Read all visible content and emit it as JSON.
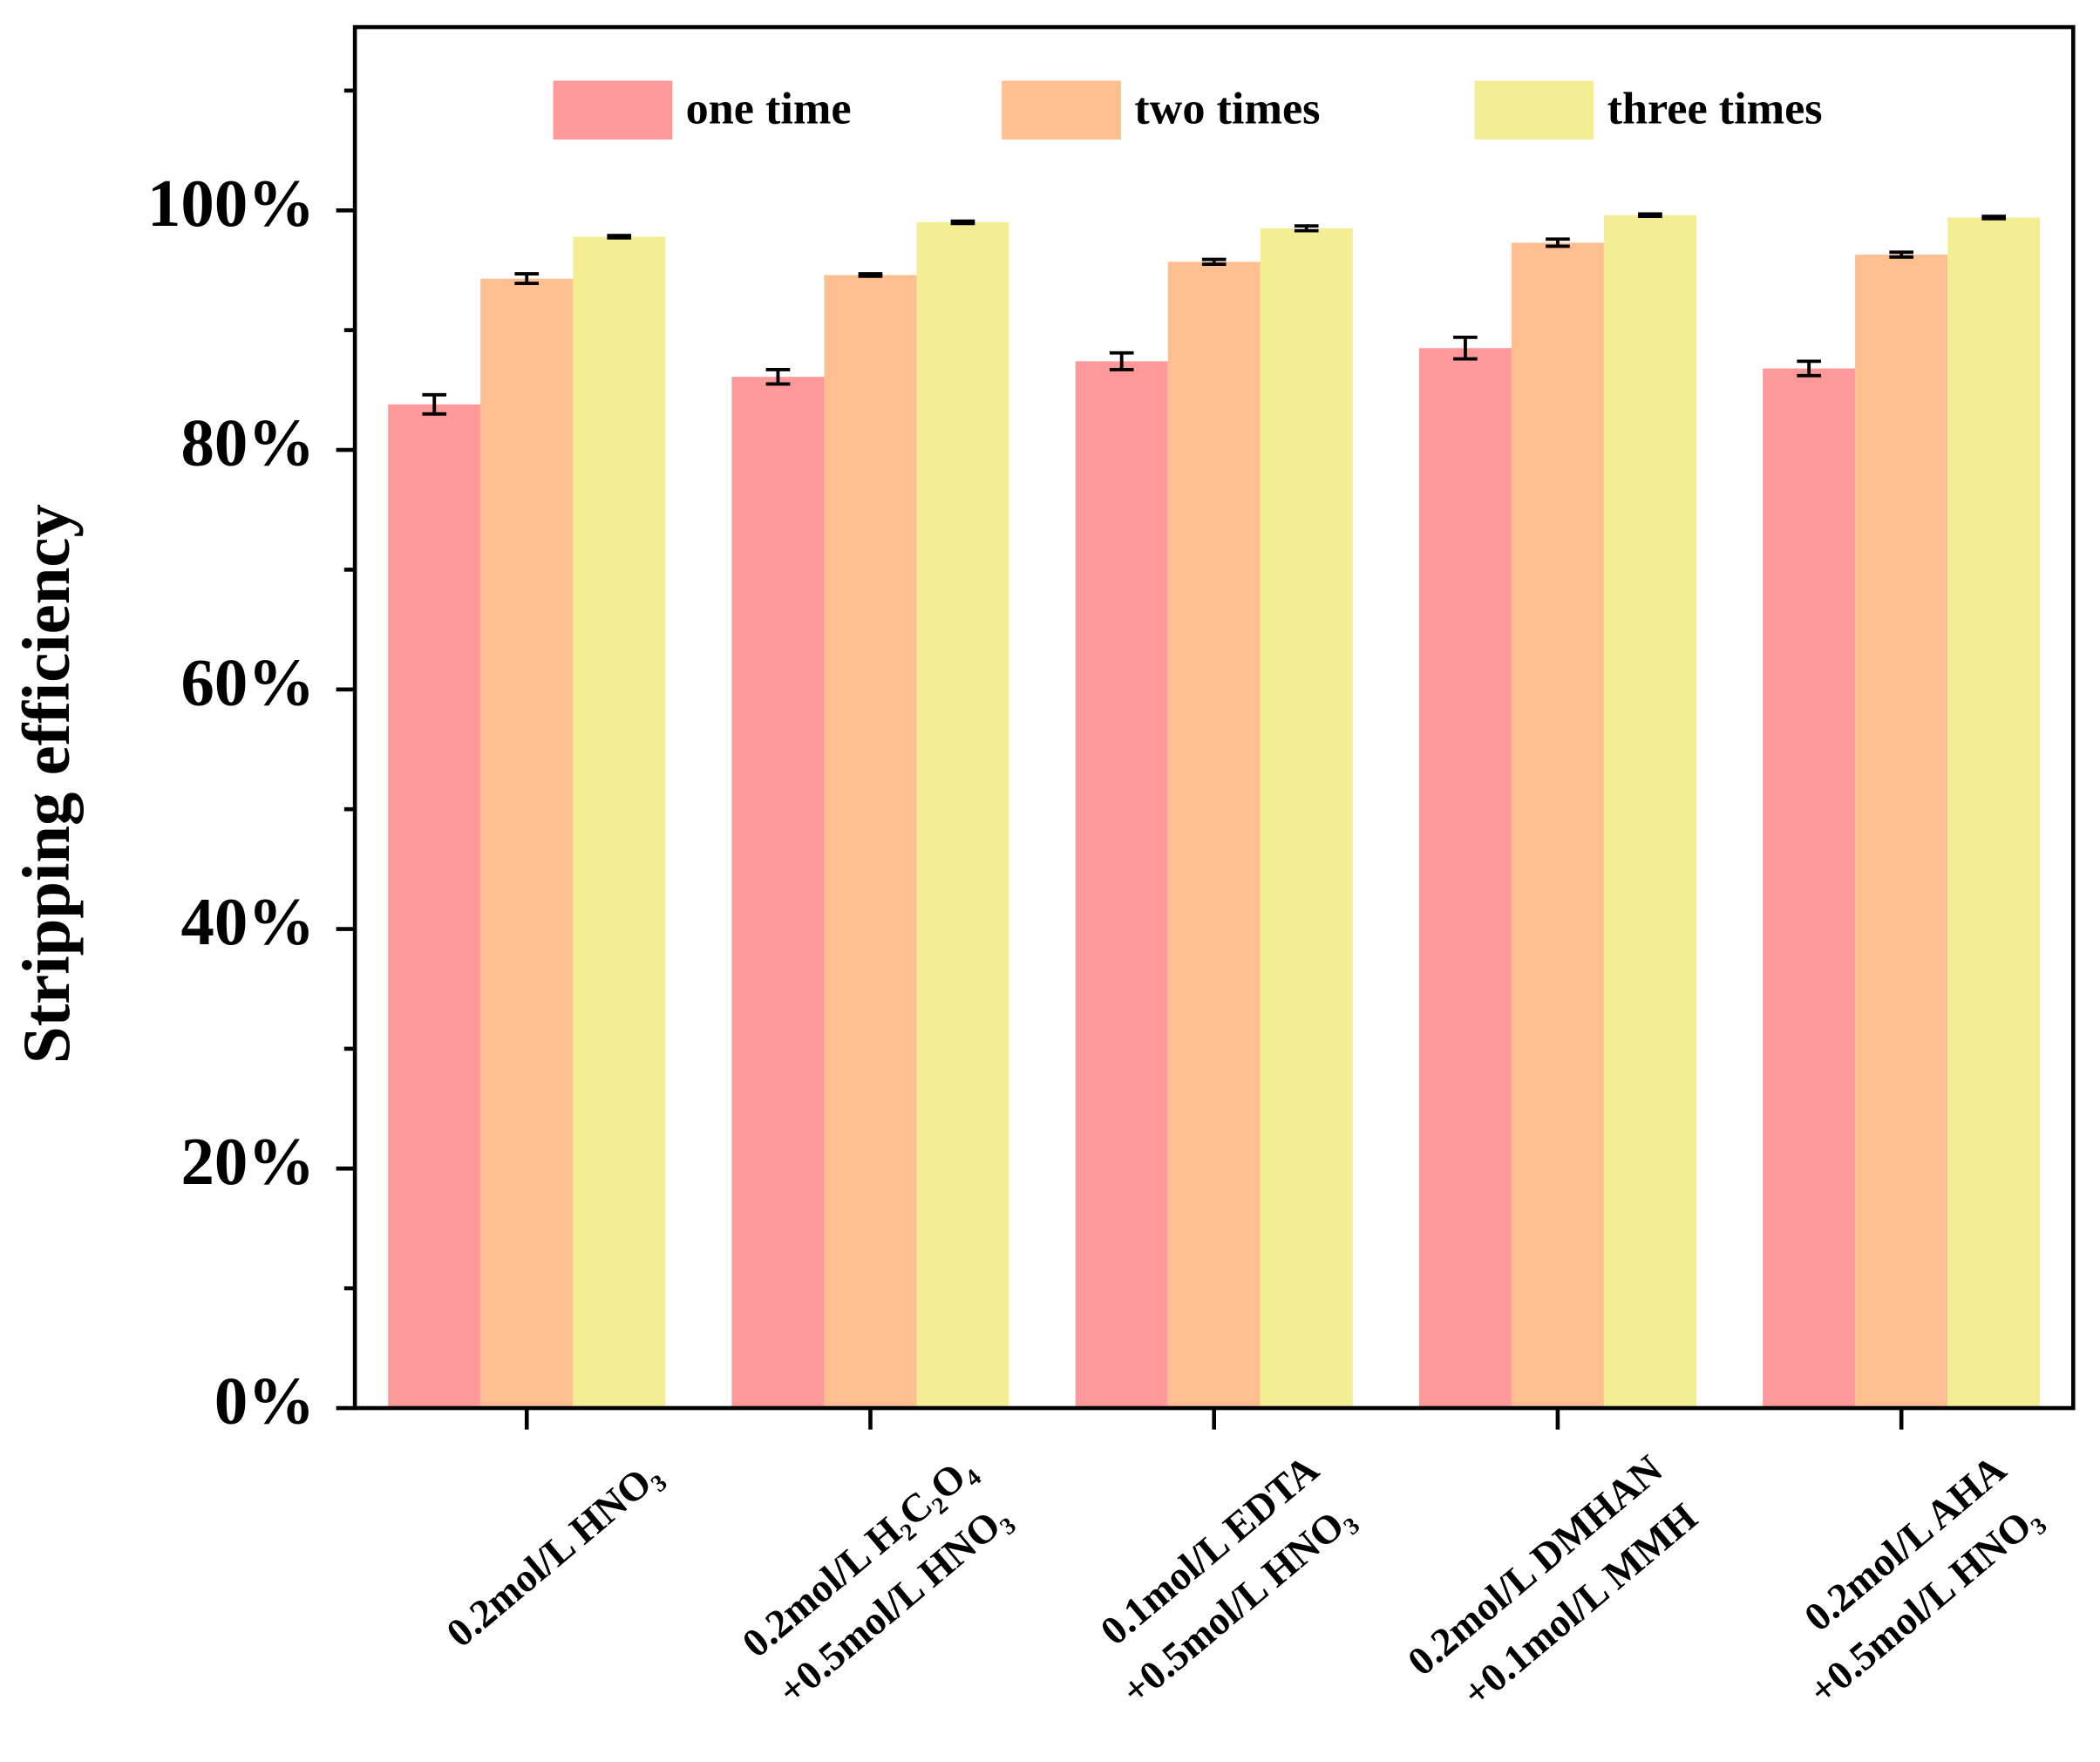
{
  "chart_data": {
    "type": "bar",
    "y_label": "Stripping efficiency",
    "categories": [
      [
        "0.2mol/L HNO₃"
      ],
      [
        "0.2mol/L H₂C₂O₄",
        "+0.5mol/L HNO₃"
      ],
      [
        "0.1mol/L EDTA",
        "+0.5mol/L HNO₃"
      ],
      [
        "0.2mol/L DMHAN",
        "+0.1mol/L MMH"
      ],
      [
        "0.2mol/L AHA",
        "+0.5mol/L HNO₃"
      ]
    ],
    "series": [
      {
        "name": "one time",
        "color": "#fe9999",
        "values": [
          83.8,
          86.1,
          87.4,
          88.5,
          86.8
        ],
        "errors": [
          0.8,
          0.6,
          0.7,
          0.9,
          0.6
        ]
      },
      {
        "name": "two times",
        "color": "#fdbf8f",
        "values": [
          94.3,
          94.6,
          95.7,
          97.3,
          96.3
        ],
        "errors": [
          0.4,
          0.1,
          0.2,
          0.3,
          0.2
        ]
      },
      {
        "name": "three times",
        "color": "#f3ee94",
        "values": [
          97.8,
          99.0,
          98.5,
          99.6,
          99.4
        ],
        "errors": [
          0.1,
          0.1,
          0.2,
          0.1,
          0.1
        ]
      }
    ],
    "ylim": [
      0,
      115.3
    ],
    "yticks": [
      {
        "value": 0,
        "label": "0%"
      },
      {
        "value": 20,
        "label": "20%"
      },
      {
        "value": 40,
        "label": "40%"
      },
      {
        "value": 60,
        "label": "60%"
      },
      {
        "value": 80,
        "label": "80%"
      },
      {
        "value": 100,
        "label": "100%"
      }
    ],
    "minor_yticks": [
      10,
      30,
      50,
      70,
      90,
      110
    ],
    "legend": "top"
  }
}
